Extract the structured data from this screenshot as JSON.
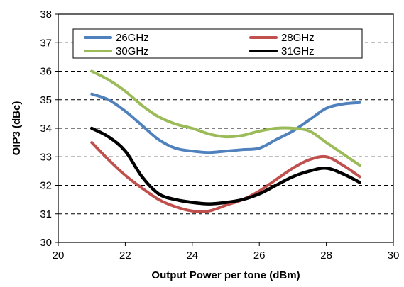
{
  "chart_data": {
    "type": "line",
    "title": "",
    "xlabel": "Output Power per tone (dBm)",
    "ylabel": "OIP3  (dBc)",
    "xlim": [
      20,
      30
    ],
    "ylim": [
      30,
      38
    ],
    "x_ticks": [
      20,
      22,
      24,
      26,
      28,
      30
    ],
    "y_ticks": [
      30,
      31,
      32,
      33,
      34,
      35,
      36,
      37,
      38
    ],
    "grid": "horizontal",
    "legend_placement": "top",
    "series": [
      {
        "name": "26GHz",
        "color": "#4f81bd",
        "x": [
          21,
          21.5,
          22,
          22.5,
          23,
          23.5,
          24,
          24.5,
          25,
          25.5,
          26,
          26.5,
          27,
          27.5,
          28,
          28.5,
          29
        ],
        "y": [
          35.2,
          35.0,
          34.6,
          34.1,
          33.6,
          33.3,
          33.2,
          33.15,
          33.2,
          33.25,
          33.3,
          33.6,
          33.9,
          34.3,
          34.7,
          34.85,
          34.9
        ]
      },
      {
        "name": "28GHz",
        "color": "#c0504d",
        "x": [
          21,
          21.5,
          22,
          22.5,
          23,
          23.5,
          24,
          24.5,
          25,
          25.5,
          26,
          26.5,
          27,
          27.5,
          28,
          28.5,
          29
        ],
        "y": [
          33.5,
          32.9,
          32.35,
          31.9,
          31.5,
          31.25,
          31.1,
          31.1,
          31.3,
          31.5,
          31.8,
          32.2,
          32.6,
          32.9,
          33.0,
          32.7,
          32.3
        ]
      },
      {
        "name": "30GHz",
        "color": "#9bbb59",
        "x": [
          21,
          21.5,
          22,
          22.5,
          23,
          23.5,
          24,
          24.5,
          25,
          25.5,
          26,
          26.5,
          27,
          27.5,
          28,
          28.5,
          29
        ],
        "y": [
          36.0,
          35.7,
          35.3,
          34.8,
          34.4,
          34.15,
          34.0,
          33.8,
          33.7,
          33.75,
          33.9,
          34.0,
          34.0,
          33.9,
          33.5,
          33.1,
          32.7
        ]
      },
      {
        "name": "31GHz",
        "color": "#000000",
        "x": [
          21,
          21.5,
          22,
          22.5,
          23,
          23.5,
          24,
          24.5,
          25,
          25.5,
          26,
          26.5,
          27,
          27.5,
          28,
          28.5,
          29
        ],
        "y": [
          34.0,
          33.7,
          33.2,
          32.3,
          31.7,
          31.5,
          31.4,
          31.35,
          31.4,
          31.5,
          31.7,
          32.0,
          32.3,
          32.5,
          32.6,
          32.4,
          32.1
        ]
      }
    ]
  }
}
